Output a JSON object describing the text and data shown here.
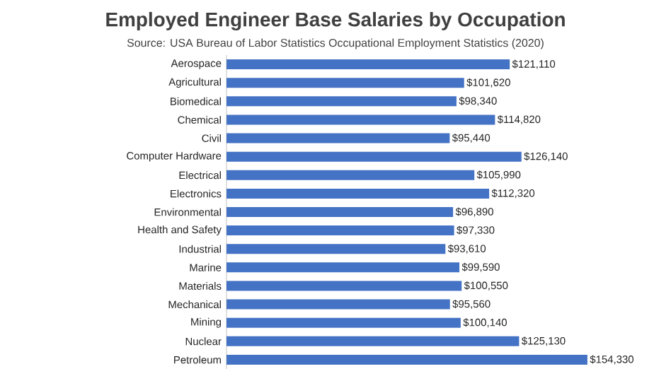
{
  "chart_data": {
    "type": "bar",
    "orientation": "horizontal",
    "title": "Employed Engineer Base Salaries by Occupation",
    "subtitle": "Source: USA Bureau of Labor Statistics Occupational Employment Statistics (2020)",
    "color": "#4472c4",
    "categories": [
      "Aerospace",
      "Agricultural",
      "Biomedical",
      "Chemical",
      "Civil",
      "Computer Hardware",
      "Electrical",
      "Electronics",
      "Environmental",
      "Health and Safety",
      "Industrial",
      "Marine",
      "Materials",
      "Mechanical",
      "Mining",
      "Nuclear",
      "Petroleum"
    ],
    "values": [
      121110,
      101620,
      98340,
      114820,
      95440,
      126140,
      105990,
      112320,
      96890,
      97330,
      93610,
      99590,
      100550,
      95560,
      100140,
      125130,
      154330
    ],
    "value_labels": [
      "$121,110",
      "$101,620",
      "$98,340",
      "$114,820",
      "$95,440",
      "$126,140",
      "$105,990",
      "$112,320",
      "$96,890",
      "$97,330",
      "$93,610",
      "$99,590",
      "$100,550",
      "$95,560",
      "$100,140",
      "$125,130",
      "$154,330"
    ]
  }
}
